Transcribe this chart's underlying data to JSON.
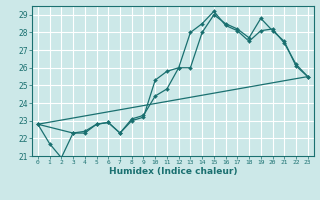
{
  "title": "",
  "xlabel": "Humidex (Indice chaleur)",
  "ylabel": "",
  "bg_color": "#cce8e8",
  "grid_color": "#ffffff",
  "line_color": "#1a7070",
  "xlim": [
    -0.5,
    23.5
  ],
  "ylim": [
    21,
    29.5
  ],
  "yticks": [
    21,
    22,
    23,
    24,
    25,
    26,
    27,
    28,
    29
  ],
  "xticks": [
    0,
    1,
    2,
    3,
    4,
    5,
    6,
    7,
    8,
    9,
    10,
    11,
    12,
    13,
    14,
    15,
    16,
    17,
    18,
    19,
    20,
    21,
    22,
    23
  ],
  "line1_x": [
    0,
    1,
    2,
    3,
    4,
    5,
    6,
    7,
    8,
    9,
    10,
    11,
    12,
    13,
    14,
    15,
    16,
    17,
    18,
    19,
    20,
    21,
    22,
    23
  ],
  "line1_y": [
    22.8,
    21.7,
    20.9,
    22.3,
    22.3,
    22.8,
    22.9,
    22.3,
    23.0,
    23.2,
    25.3,
    25.8,
    26.0,
    28.0,
    28.5,
    29.2,
    28.4,
    28.1,
    27.5,
    28.1,
    28.2,
    27.4,
    26.2,
    25.5
  ],
  "line2_x": [
    0,
    3,
    4,
    5,
    6,
    7,
    8,
    9,
    10,
    11,
    12,
    13,
    14,
    15,
    16,
    17,
    18,
    19,
    20,
    21,
    22,
    23
  ],
  "line2_y": [
    22.8,
    22.3,
    22.4,
    22.8,
    22.9,
    22.3,
    23.1,
    23.3,
    24.4,
    24.8,
    26.0,
    26.0,
    28.0,
    29.0,
    28.5,
    28.2,
    27.7,
    28.8,
    28.1,
    27.5,
    26.1,
    25.5
  ],
  "line3_x": [
    0,
    23
  ],
  "line3_y": [
    22.8,
    25.5
  ]
}
